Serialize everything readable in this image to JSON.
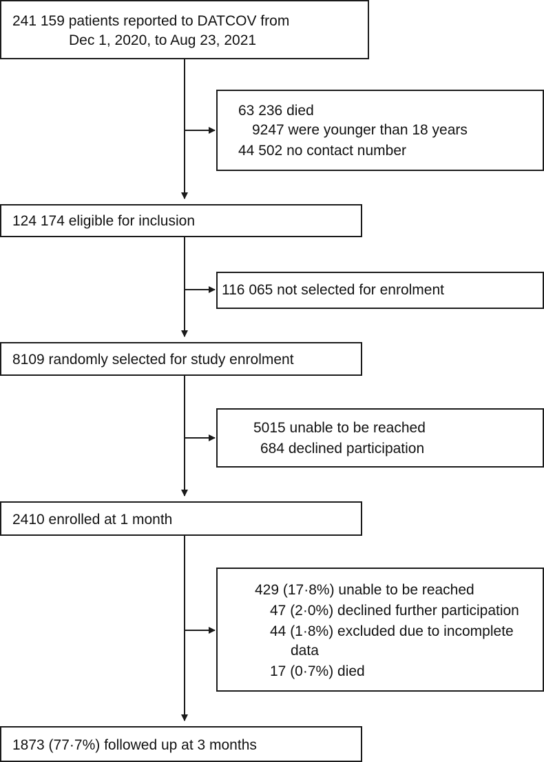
{
  "boxes": {
    "reported": {
      "line1": "241 159 patients reported to DATCOV from",
      "line2": "Dec 1, 2020, to Aug 23, 2021"
    },
    "excluded1": {
      "died": "63 236 died",
      "under18": "9247 were younger than 18 years",
      "no_contact": "44 502 no contact number"
    },
    "eligible": {
      "text": "124 174 eligible for inclusion"
    },
    "not_selected": {
      "text": "116 065 not selected for enrolment"
    },
    "selected": {
      "text": "8109 randomly selected for study enrolment"
    },
    "excluded2": {
      "unreached": "5015 unable to be reached",
      "declined": "684 declined participation"
    },
    "enrolled": {
      "text": "2410 enrolled at 1 month"
    },
    "excluded3": {
      "unreached": "429 (17·8%) unable to be reached",
      "declined": "47 (2·0%) declined further participation",
      "incomplete_1": "44 (1·8%) excluded due to incomplete",
      "incomplete_2": "data",
      "died": "17 (0·7%) died"
    },
    "followed": {
      "text": "1873 (77·7%) followed up at 3 months"
    }
  }
}
